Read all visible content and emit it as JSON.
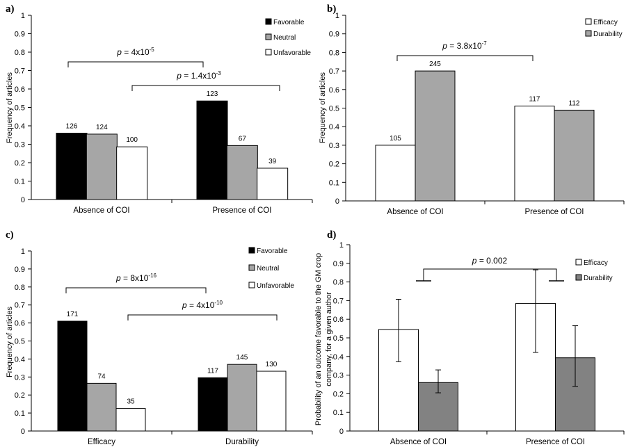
{
  "colors": {
    "Favorable": "#000000",
    "Neutral": "#a6a6a6",
    "Unfavorable": "#ffffff",
    "Efficacy": "#ffffff",
    "Durability": "#a6a6a6",
    "Durability_d": "#828282"
  },
  "chart_data": [
    {
      "panel": "a)",
      "type": "bar",
      "ylabel": "Frequency of articles",
      "xlabel": "",
      "ylim": [
        0,
        1
      ],
      "yticks": [
        "0",
        "0.1",
        "0.2",
        "0.3",
        "0.4",
        "0.5",
        "0.6",
        "0.7",
        "0.8",
        "0.9",
        "1"
      ],
      "categories": [
        "Absence of COI",
        "Presence of COI"
      ],
      "series": [
        {
          "name": "Favorable",
          "values": [
            0.36,
            0.535
          ],
          "labels": [
            "126",
            "123"
          ]
        },
        {
          "name": "Neutral",
          "values": [
            0.355,
            0.293
          ],
          "labels": [
            "124",
            "67"
          ]
        },
        {
          "name": "Unfavorable",
          "values": [
            0.286,
            0.17
          ],
          "labels": [
            "100",
            "39"
          ]
        }
      ],
      "legend": [
        "Favorable",
        "Neutral",
        "Unfavorable"
      ],
      "legend_placement": "top-right",
      "annotations": [
        {
          "text": "p = 4x10",
          "exp": "-5",
          "from": "Favorable",
          "to": "Favorable"
        },
        {
          "text": "p = 1.4x10",
          "exp": "-3",
          "from": "Neutral",
          "to": "Unfavorable"
        }
      ]
    },
    {
      "panel": "b)",
      "type": "bar",
      "ylabel": "Frequency of articles",
      "xlabel": "",
      "ylim": [
        0,
        1
      ],
      "yticks": [
        "0",
        "0.1",
        "0.2",
        "0.3",
        "0.4",
        "0.5",
        "0.6",
        "0.7",
        "0.8",
        "0.9",
        "1"
      ],
      "categories": [
        "Absence of COI",
        "Presence of COI"
      ],
      "series": [
        {
          "name": "Efficacy",
          "values": [
            0.3,
            0.511
          ],
          "labels": [
            "105",
            "117"
          ]
        },
        {
          "name": "Durability",
          "values": [
            0.7,
            0.489
          ],
          "labels": [
            "245",
            "112"
          ]
        }
      ],
      "legend": [
        "Efficacy",
        "Durability"
      ],
      "legend_placement": "top-right",
      "annotations": [
        {
          "text": "p = 3.8x10",
          "exp": "-7",
          "from": "Efficacy",
          "to": "Efficacy"
        }
      ]
    },
    {
      "panel": "c)",
      "type": "bar",
      "ylabel": "Frequency of articles",
      "xlabel": "",
      "ylim": [
        0,
        1
      ],
      "yticks": [
        "0",
        "0.1",
        "0.2",
        "0.3",
        "0.4",
        "0.5",
        "0.6",
        "0.7",
        "0.8",
        "0.9",
        "1"
      ],
      "categories": [
        "Efficacy",
        "Durability"
      ],
      "series": [
        {
          "name": "Favorable",
          "values": [
            0.61,
            0.296
          ],
          "labels": [
            "171",
            "117"
          ]
        },
        {
          "name": "Neutral",
          "values": [
            0.265,
            0.37
          ],
          "labels": [
            "74",
            "145"
          ]
        },
        {
          "name": "Unfavorable",
          "values": [
            0.125,
            0.332
          ],
          "labels": [
            "35",
            "130"
          ]
        }
      ],
      "legend": [
        "Favorable",
        "Neutral",
        "Unfavorable"
      ],
      "legend_placement": "top-right",
      "annotations": [
        {
          "text": "p = 8x10",
          "exp": "-16",
          "from": "Favorable",
          "to": "Favorable"
        },
        {
          "text": "p = 4x10",
          "exp": "-10",
          "from": "Neutral",
          "to": "Unfavorable"
        }
      ]
    },
    {
      "panel": "d)",
      "type": "bar",
      "ylabel": "Probability of an outcome favorable to the GM crop company, for a given author",
      "xlabel": "",
      "ylim": [
        0,
        1
      ],
      "yticks": [
        "0",
        "0.1",
        "0.2",
        "0.3",
        "0.4",
        "0.5",
        "0.6",
        "0.7",
        "0.8",
        "0.9",
        "1"
      ],
      "categories": [
        "Absence of COI",
        "Presence of COI"
      ],
      "series": [
        {
          "name": "Efficacy",
          "values": [
            0.545,
            0.685
          ],
          "err_low": [
            0.372,
            0.422
          ],
          "err_high": [
            0.707,
            0.865
          ]
        },
        {
          "name": "Durability",
          "values": [
            0.26,
            0.393
          ],
          "err_low": [
            0.205,
            0.24
          ],
          "err_high": [
            0.328,
            0.565
          ]
        }
      ],
      "legend": [
        "Efficacy",
        "Durability"
      ],
      "legend_placement": "top-right",
      "annotations": [
        {
          "text": "p = 0.002",
          "exp": "",
          "from": "Efficacy",
          "to": "Efficacy"
        }
      ]
    }
  ]
}
